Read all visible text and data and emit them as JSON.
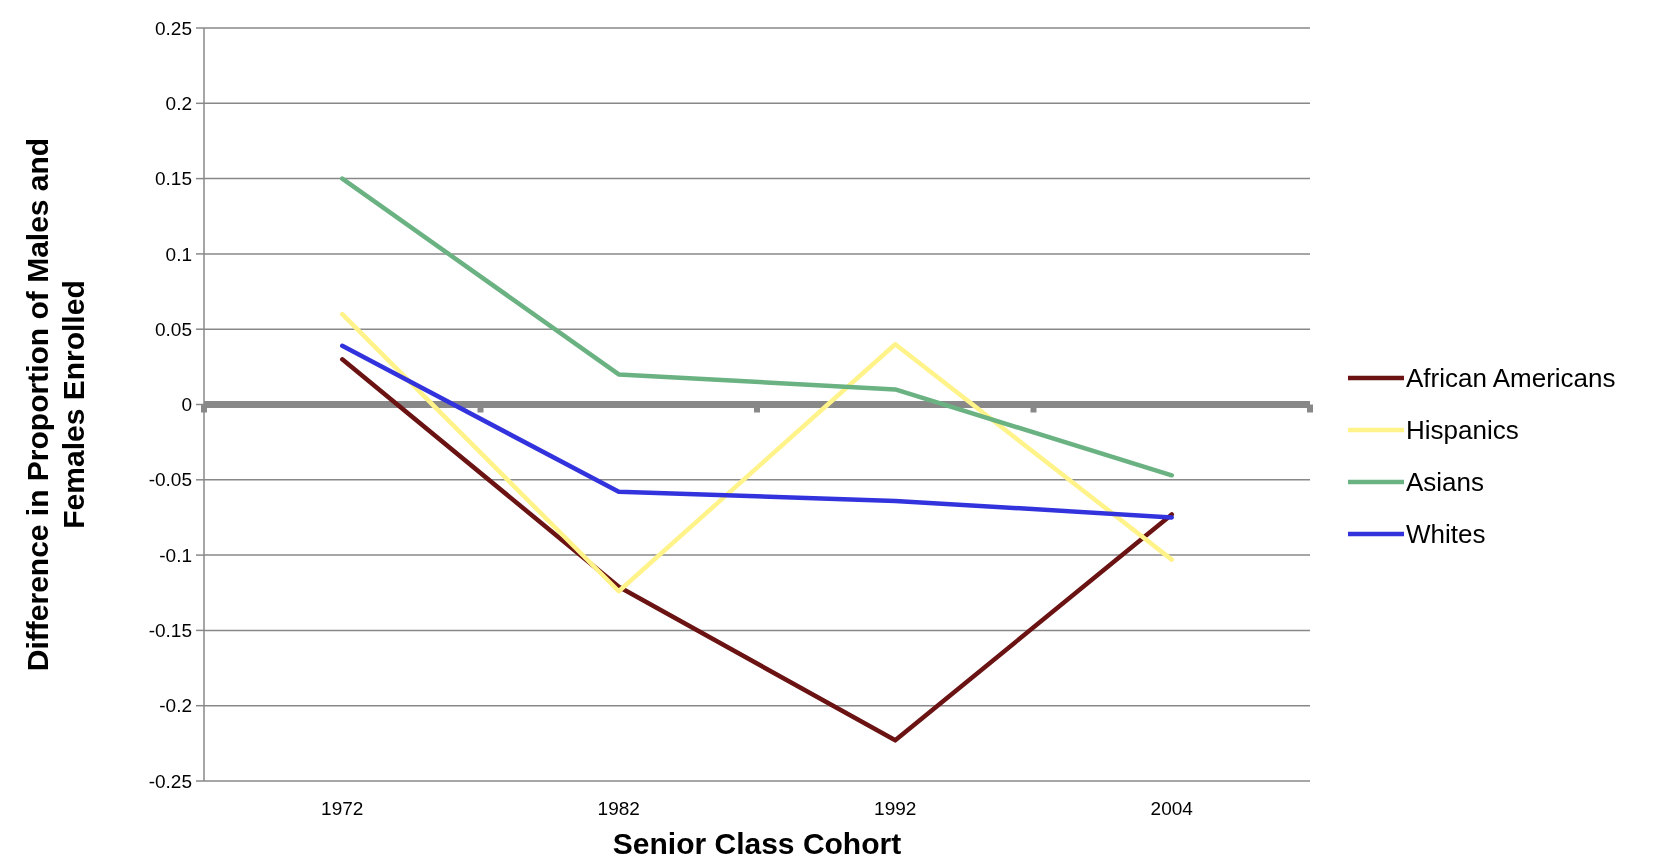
{
  "chart_data": {
    "type": "line",
    "xlabel": "Senior Class Cohort",
    "ylabel": "Difference in Proportion of Males and Females Enrolled",
    "categories": [
      "1972",
      "1982",
      "1992",
      "2004"
    ],
    "series": [
      {
        "name": "African Americans",
        "color": "#6b1212",
        "values": [
          0.03,
          -0.121,
          -0.223,
          -0.073
        ]
      },
      {
        "name": "Hispanics",
        "color": "#fff38a",
        "values": [
          0.06,
          -0.124,
          0.04,
          -0.103
        ]
      },
      {
        "name": "Asians",
        "color": "#6ab282",
        "values": [
          0.15,
          0.02,
          0.01,
          -0.047
        ]
      },
      {
        "name": "Whites",
        "color": "#3333dd",
        "values": [
          0.039,
          -0.058,
          -0.064,
          -0.075
        ]
      }
    ],
    "ylim": [
      -0.25,
      0.25
    ],
    "yticks": [
      -0.25,
      -0.2,
      -0.15,
      -0.1,
      -0.05,
      0,
      0.05,
      0.1,
      0.15,
      0.2,
      0.25
    ],
    "grid": "y",
    "legend": "right",
    "marker": "none",
    "line_style": "solid"
  }
}
